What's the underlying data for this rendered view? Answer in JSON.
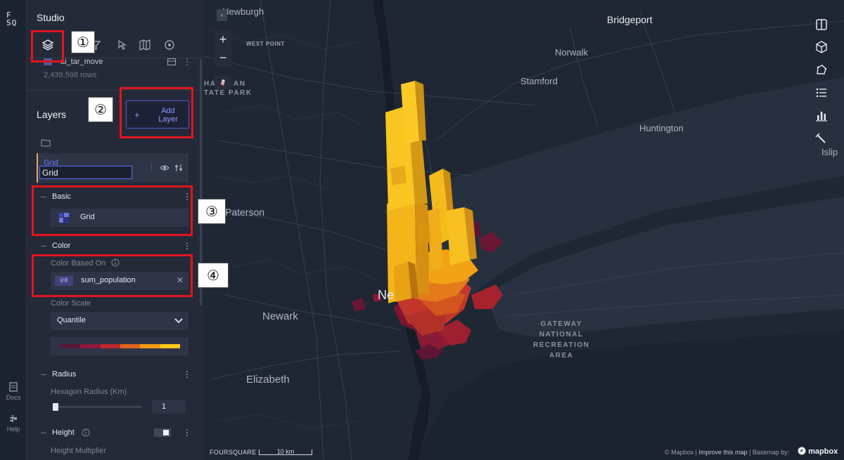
{
  "rail": {
    "logo_top": "F",
    "logo_bottom": "SQ",
    "docs_label": "Docs",
    "help_label": "Help"
  },
  "panel": {
    "title": "Studio",
    "dataset": {
      "name": "ai_tar_move",
      "rows": "2,439,598 rows"
    },
    "layers_title": "Layers",
    "add_layer_label": "Add Layer",
    "layer": {
      "type_label": "Grid",
      "name_value": "Grid"
    },
    "sections": {
      "basic": {
        "title": "Basic",
        "layer_type": "Grid"
      },
      "color": {
        "title": "Color",
        "based_on_label": "Color Based On",
        "field_type": "int",
        "field_name": "sum_population",
        "scale_label": "Color Scale",
        "scale_value": "Quantile",
        "scale_colors": [
          "#5a1837",
          "#8e1a3c",
          "#c2282c",
          "#e0621e",
          "#f29d13",
          "#ffc917"
        ]
      },
      "radius": {
        "title": "Radius",
        "label": "Hexagon Radius (Km)",
        "value": "1",
        "slider_fraction": 0.02
      },
      "height": {
        "title": "Height",
        "multiplier_label": "Height Multiplier",
        "enabled": true
      }
    }
  },
  "map": {
    "labels": {
      "newburgh": "Newburgh",
      "bridgeport": "Bridgeport",
      "west_point": "WEST POINT",
      "norwalk": "Norwalk",
      "harriman": "HA",
      "harriman2": "AN",
      "state_park": "TATE PARK",
      "stamford": "Stamford",
      "huntington": "Huntington",
      "islip": "Islip",
      "paterson": "Paterson",
      "new_york": "Ne",
      "newark": "Newark",
      "elizabeth": "Elizabeth",
      "gateway": [
        "GATEWAY",
        "NATIONAL",
        "RECREATION",
        "AREA"
      ]
    },
    "zoom_in": "+",
    "zoom_out": "−",
    "collapse": "‹",
    "scale_label": "10 km",
    "brand": "FOURSQUARE",
    "attribution": {
      "copyright": "© Mapbox",
      "improve": "Improve this map",
      "basemap": "Basemap by:",
      "mapbox": "mapbox"
    }
  },
  "annotations": [
    "①",
    "②",
    "③",
    "④"
  ],
  "icons": [
    "layers-icon",
    "filter-icon",
    "interaction-icon",
    "basemap-icon",
    "search-icon",
    "split-map-icon",
    "cube-icon",
    "draw-icon",
    "legend-icon",
    "chart-icon",
    "tool-icon"
  ]
}
